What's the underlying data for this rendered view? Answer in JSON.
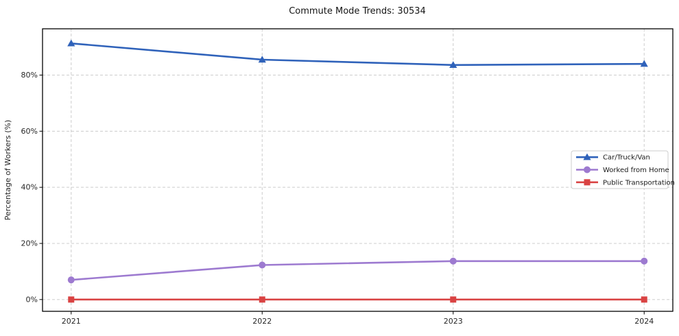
{
  "chart_data": {
    "type": "line",
    "title": "Commute Mode Trends: 30534",
    "xlabel": "",
    "ylabel": "Percentage of Workers (%)",
    "x": [
      2021,
      2022,
      2023,
      2024
    ],
    "x_tick_labels": [
      "2021",
      "2022",
      "2023",
      "2024"
    ],
    "y_ticks": [
      0,
      20,
      40,
      60,
      80
    ],
    "y_tick_labels": [
      "0%",
      "20%",
      "40%",
      "60%",
      "80%"
    ],
    "xlim": [
      2020.85,
      2024.15
    ],
    "ylim": [
      -4.2,
      96.5
    ],
    "grid": true,
    "grid_style": "dashed",
    "legend_position": "center-right",
    "series": [
      {
        "name": "Car/Truck/Van",
        "marker": "triangle",
        "color": "#2f62ba",
        "values": [
          91.3,
          85.5,
          83.6,
          84.0
        ]
      },
      {
        "name": "Worked from Home",
        "marker": "circle",
        "color": "#9d7ad0",
        "values": [
          7.0,
          12.3,
          13.7,
          13.7
        ]
      },
      {
        "name": "Public Transportation",
        "marker": "square",
        "color": "#d94343",
        "values": [
          0.0,
          0.0,
          0.0,
          0.0
        ]
      }
    ],
    "colors": {
      "grid": "#cccccc",
      "spine": "#000000",
      "tick": "#000000",
      "background": "#ffffff",
      "legend_border": "#cccccc",
      "legend_background": "#ffffff"
    }
  }
}
